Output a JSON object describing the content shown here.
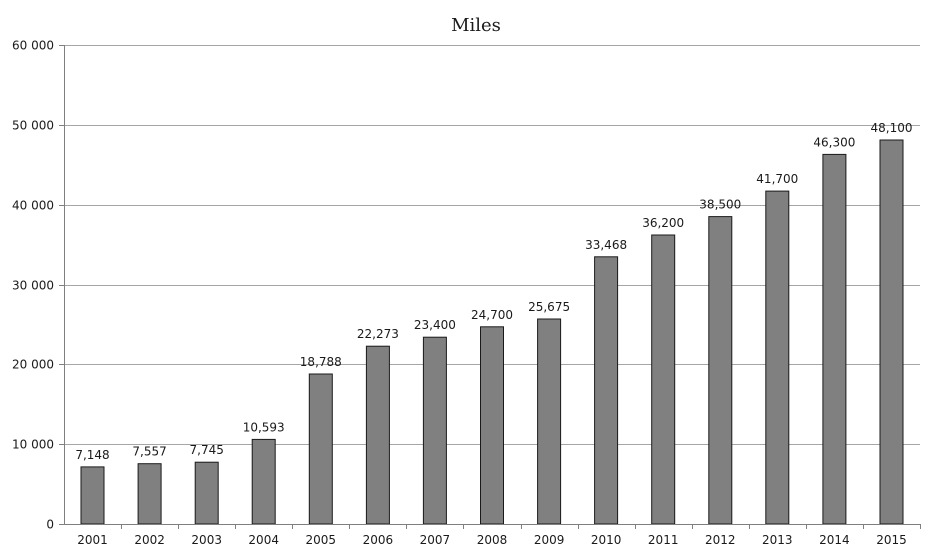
{
  "chart_data": {
    "type": "bar",
    "title": "Miles",
    "xlabel": "",
    "ylabel": "",
    "categories": [
      "2001",
      "2002",
      "2003",
      "2004",
      "2005",
      "2006",
      "2007",
      "2008",
      "2009",
      "2010",
      "2011",
      "2012",
      "2013",
      "2014",
      "2015"
    ],
    "values": [
      7148,
      7557,
      7745,
      10593,
      18788,
      22273,
      23400,
      24700,
      25675,
      33468,
      36200,
      38500,
      41700,
      46300,
      48100
    ],
    "data_labels": [
      "7,148",
      "7,557",
      "7,745",
      "10,593",
      "18,788",
      "22,273",
      "23,400",
      "24,700",
      "25,675",
      "33,468",
      "36,200",
      "38,500",
      "41,700",
      "46,300",
      "48,100"
    ],
    "ylim": [
      0,
      60000
    ],
    "y_ticks": [
      0,
      10000,
      20000,
      30000,
      40000,
      50000,
      60000
    ],
    "y_tick_labels": [
      "0",
      "10 000",
      "20 000",
      "30 000",
      "40 000",
      "50 000",
      "60 000"
    ],
    "grid": true,
    "legend": "none",
    "colors": {
      "bar_fill": "#808080",
      "bar_stroke": "#1a1a1a",
      "grid": "#a6a6a6",
      "text": "#1a1a1a"
    }
  }
}
